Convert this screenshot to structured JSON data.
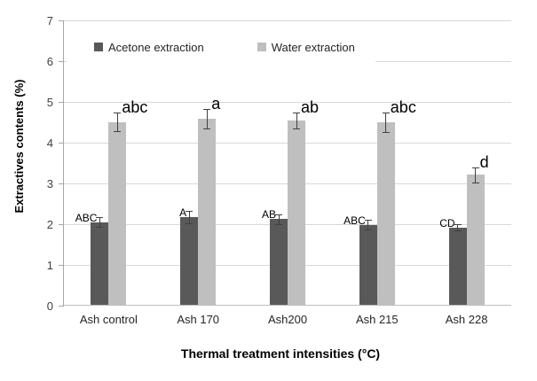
{
  "figure": {
    "background": "#ffffff",
    "gridline_color": "#d9d9d9",
    "axis_color": "#a6a6a6",
    "error_bar_color": "#404040"
  },
  "chart_data": {
    "type": "bar",
    "title": "",
    "categories": [
      "Ash control",
      "Ash 170",
      "Ash200",
      "Ash 215",
      "Ash 228"
    ],
    "series": [
      {
        "name": "Acetone extraction",
        "color": "#595959",
        "values": [
          2.05,
          2.17,
          2.12,
          1.98,
          1.92
        ],
        "errors": [
          0.12,
          0.15,
          0.12,
          0.12,
          0.08
        ],
        "labels": [
          "ABC",
          "A",
          "AB",
          "ABC",
          "CD"
        ]
      },
      {
        "name": "Water extraction",
        "color": "#bfbfbf",
        "values": [
          4.51,
          4.59,
          4.55,
          4.5,
          3.21
        ],
        "errors": [
          0.22,
          0.24,
          0.2,
          0.23,
          0.18
        ],
        "labels": [
          "abc",
          "a",
          "ab",
          "abc",
          "d"
        ]
      }
    ],
    "xlabel": "Thermal treatment intensities (°C)",
    "ylabel": "Extractives contents (%)",
    "ylim": [
      0,
      7
    ],
    "ytick_step": 1,
    "grid": true,
    "legend_position": "top-inside"
  }
}
